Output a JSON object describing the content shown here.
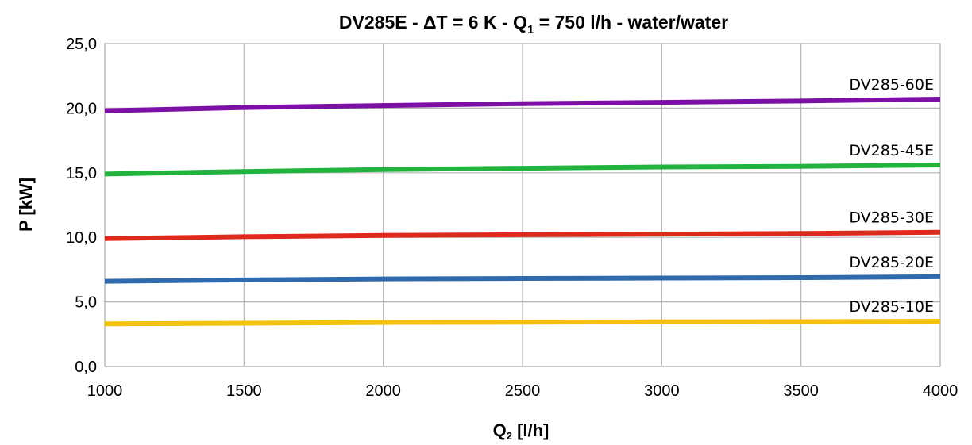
{
  "chart_data": {
    "type": "line",
    "title": {
      "prefix": "DV285E - ΔT = 6 K - Q",
      "sub": "1",
      "suffix": " = 750 l/h - water/water"
    },
    "xlabel": {
      "main": "Q",
      "sub": "2",
      "rest": " [l/h]"
    },
    "ylabel": "P [kW]",
    "xlim": [
      1000,
      4000
    ],
    "ylim": [
      0,
      25
    ],
    "xticks": [
      1000,
      1500,
      2000,
      2500,
      3000,
      3500,
      4000
    ],
    "xtick_labels": [
      "1000",
      "1500",
      "2000",
      "2500",
      "3000",
      "3500",
      "4000"
    ],
    "yticks": [
      0,
      5,
      10,
      15,
      20,
      25
    ],
    "ytick_labels": [
      "0,0",
      "5,0",
      "10,0",
      "15,0",
      "20,0",
      "25,0"
    ],
    "grid": true,
    "series": [
      {
        "name": "DV285-60E",
        "color": "#7b0fa6",
        "x": [
          1000,
          1500,
          2000,
          2500,
          3000,
          3500,
          4000
        ],
        "values": [
          19.8,
          20.05,
          20.2,
          20.35,
          20.45,
          20.55,
          20.7
        ]
      },
      {
        "name": "DV285-45E",
        "color": "#22b33e",
        "x": [
          1000,
          1500,
          2000,
          2500,
          3000,
          3500,
          4000
        ],
        "values": [
          14.9,
          15.1,
          15.25,
          15.35,
          15.45,
          15.5,
          15.6
        ]
      },
      {
        "name": "DV285-30E",
        "color": "#de2a1d",
        "x": [
          1000,
          1500,
          2000,
          2500,
          3000,
          3500,
          4000
        ],
        "values": [
          9.9,
          10.05,
          10.15,
          10.2,
          10.25,
          10.3,
          10.4
        ]
      },
      {
        "name": "DV285-20E",
        "color": "#2f6aad",
        "x": [
          1000,
          1500,
          2000,
          2500,
          3000,
          3500,
          4000
        ],
        "values": [
          6.6,
          6.7,
          6.78,
          6.82,
          6.85,
          6.88,
          6.95
        ]
      },
      {
        "name": "DV285-10E",
        "color": "#f5c10f",
        "x": [
          1000,
          1500,
          2000,
          2500,
          3000,
          3500,
          4000
        ],
        "values": [
          3.3,
          3.35,
          3.4,
          3.42,
          3.45,
          3.47,
          3.5
        ]
      }
    ]
  }
}
